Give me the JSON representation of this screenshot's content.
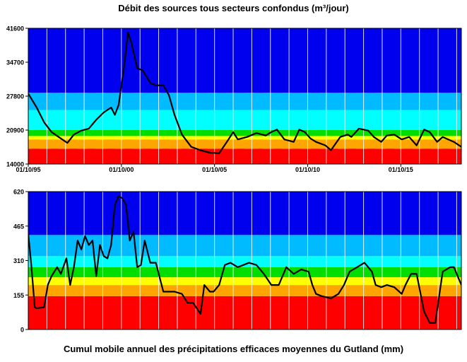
{
  "chart_data": [
    {
      "type": "line",
      "title": "Débit des sources tous secteurs confondus  (m³/jour)",
      "y_ticks": [
        "41600",
        "34700",
        "27800",
        "20900",
        "14000"
      ],
      "y_tick_values": [
        41600,
        34700,
        27800,
        20900,
        14000
      ],
      "ylim": [
        14000,
        41600
      ],
      "x_ticks": [
        "01/10/95",
        "01/10/00",
        "01/10/05",
        "01/10/10",
        "01/10/15"
      ],
      "x_tick_values": [
        1995.75,
        2000.75,
        2005.75,
        2010.75,
        2015.75
      ],
      "xlim": [
        1995.75,
        2019.0
      ],
      "grid": "vertical",
      "bands": [
        {
          "color": "#ff0000",
          "low": 14000,
          "high_min": 17100,
          "high_max": 18300
        },
        {
          "color": "#ffa500",
          "low": 17100,
          "high_min": 19000,
          "high_max": 20300
        },
        {
          "color": "#ffff00",
          "low": 19000,
          "high_min": 19700,
          "high_max": 21400
        },
        {
          "color": "#00dd00",
          "low": 19700,
          "high_min": 20900,
          "high_max": 25200
        },
        {
          "color": "#00ffff",
          "low": 20900,
          "high_min": 25000,
          "high_max": 28000
        },
        {
          "color": "#00bbff",
          "low": 25000,
          "high_min": 28500,
          "high_max": 31800
        },
        {
          "color": "#0000ee",
          "low": 28500,
          "high_min": 41600,
          "high_max": 41600
        }
      ],
      "series": [
        {
          "color": "#000000",
          "x": [
            1995.75,
            1996.2,
            1996.6,
            1997.0,
            1997.5,
            1997.85,
            1998.2,
            1998.6,
            1999.0,
            1999.4,
            1999.8,
            2000.2,
            2000.4,
            2000.6,
            2000.9,
            2001.1,
            2001.3,
            2001.6,
            2001.9,
            2002.3,
            2002.6,
            2003.0,
            2003.3,
            2003.6,
            2004.0,
            2004.5,
            2005.0,
            2005.5,
            2006.0,
            2006.5,
            2006.75,
            2007.0,
            2007.5,
            2008.0,
            2008.5,
            2008.8,
            2009.1,
            2009.5,
            2010.0,
            2010.3,
            2010.6,
            2010.9,
            2011.2,
            2011.7,
            2012.0,
            2012.5,
            2012.9,
            2013.1,
            2013.5,
            2014.0,
            2014.3,
            2014.7,
            2015.0,
            2015.4,
            2015.8,
            2016.2,
            2016.6,
            2017.0,
            2017.3,
            2017.7,
            2018.0,
            2018.3,
            2018.6,
            2019.0
          ],
          "values": [
            28300,
            25500,
            22500,
            20500,
            19200,
            18300,
            20000,
            20800,
            21200,
            23000,
            24500,
            25500,
            24000,
            26000,
            34000,
            40800,
            38500,
            33500,
            33000,
            30500,
            30000,
            30000,
            28000,
            24000,
            20000,
            17500,
            16800,
            16300,
            16200,
            19000,
            20500,
            19000,
            19500,
            20300,
            19800,
            20500,
            21000,
            19000,
            18500,
            21000,
            20500,
            19200,
            18500,
            17800,
            16800,
            19500,
            20000,
            19500,
            21200,
            20800,
            19500,
            18500,
            19800,
            20000,
            19000,
            19500,
            17800,
            21000,
            20500,
            18500,
            19500,
            19000,
            18500,
            17500
          ]
        }
      ]
    },
    {
      "type": "line",
      "title": "Cumul mobile annuel des précipitations efficaces moyennes du Gutland (mm)",
      "y_ticks": [
        "620",
        "465",
        "310",
        "155",
        "0"
      ],
      "y_tick_values": [
        620,
        465,
        310,
        155,
        0
      ],
      "ylim": [
        0,
        620
      ],
      "xlim": [
        1995.75,
        2019.0
      ],
      "grid": "vertical",
      "bands": [
        {
          "color": "#ff0000",
          "low": 0,
          "high": 150
        },
        {
          "color": "#ffa500",
          "low": 150,
          "high": 200
        },
        {
          "color": "#ffff00",
          "low": 200,
          "high": 235
        },
        {
          "color": "#00dd00",
          "low": 235,
          "high": 280
        },
        {
          "color": "#00ffff",
          "low": 280,
          "high": 330
        },
        {
          "color": "#00bbff",
          "low": 330,
          "high": 425
        },
        {
          "color": "#0000ee",
          "low": 425,
          "high": 620
        }
      ],
      "series": [
        {
          "color": "#000000",
          "x": [
            1995.75,
            1995.9,
            1996.0,
            1996.1,
            1996.2,
            1996.6,
            1996.8,
            1997.0,
            1997.3,
            1997.5,
            1997.8,
            1998.0,
            1998.2,
            1998.4,
            1998.6,
            1998.8,
            1999.0,
            1999.2,
            1999.4,
            1999.6,
            1999.8,
            2000.0,
            2000.2,
            2000.4,
            2000.6,
            2000.8,
            2001.0,
            2001.2,
            2001.4,
            2001.6,
            2001.8,
            2002.0,
            2002.3,
            2002.6,
            2003.0,
            2003.3,
            2003.6,
            2004.0,
            2004.3,
            2004.6,
            2005.0,
            2005.2,
            2005.5,
            2005.7,
            2006.0,
            2006.3,
            2006.6,
            2007.0,
            2007.3,
            2007.6,
            2008.0,
            2008.4,
            2008.8,
            2009.2,
            2009.6,
            2010.0,
            2010.4,
            2010.8,
            2011.0,
            2011.2,
            2011.5,
            2012.0,
            2012.4,
            2012.7,
            2013.0,
            2013.4,
            2013.8,
            2014.2,
            2014.4,
            2014.7,
            2015.0,
            2015.4,
            2015.8,
            2016.0,
            2016.3,
            2016.6,
            2017.0,
            2017.3,
            2017.6,
            2018.0,
            2018.4,
            2018.6,
            2019.0
          ],
          "values": [
            430,
            300,
            200,
            100,
            95,
            100,
            200,
            240,
            280,
            250,
            320,
            200,
            280,
            400,
            360,
            420,
            380,
            400,
            240,
            380,
            330,
            320,
            380,
            560,
            600,
            590,
            560,
            400,
            440,
            280,
            290,
            400,
            300,
            300,
            170,
            170,
            170,
            160,
            120,
            120,
            70,
            200,
            170,
            170,
            200,
            290,
            300,
            280,
            290,
            300,
            290,
            250,
            200,
            200,
            280,
            250,
            270,
            260,
            200,
            160,
            150,
            140,
            160,
            200,
            260,
            280,
            300,
            260,
            200,
            190,
            200,
            190,
            160,
            200,
            250,
            250,
            80,
            30,
            30,
            260,
            280,
            280,
            200
          ]
        }
      ]
    }
  ]
}
